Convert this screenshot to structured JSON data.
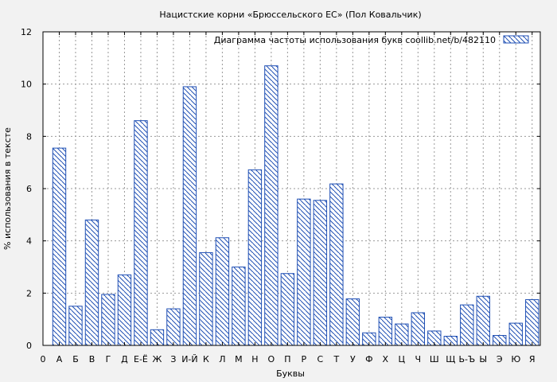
{
  "chart_data": {
    "type": "bar",
    "title": "Нацистские корни «Брюссельского ЕС» (Пол Ковальчик)",
    "xlabel": "Буквы",
    "ylabel": "% использования в тексте",
    "ylim": [
      0,
      12
    ],
    "yticks": [
      "0",
      "2",
      "4",
      "6",
      "8",
      "10",
      "12"
    ],
    "x_start_label": "0",
    "categories": [
      "А",
      "Б",
      "В",
      "Г",
      "Д",
      "Е-Ё",
      "Ж",
      "З",
      "И-Й",
      "К",
      "Л",
      "М",
      "Н",
      "О",
      "П",
      "Р",
      "С",
      "Т",
      "У",
      "Ф",
      "Х",
      "Ц",
      "Ч",
      "Ш",
      "Щ",
      "Ь-Ъ",
      "Ы",
      "Э",
      "Ю",
      "Я"
    ],
    "series": [
      {
        "name": "Диаграмма частоты использования букв  coollib.net/b/482110",
        "values": [
          7.55,
          1.5,
          4.8,
          1.95,
          2.7,
          8.6,
          0.6,
          1.4,
          9.9,
          3.55,
          4.12,
          3.0,
          6.72,
          10.7,
          2.75,
          5.6,
          5.55,
          6.18,
          1.78,
          0.48,
          1.08,
          0.82,
          1.25,
          0.55,
          0.35,
          1.55,
          1.88,
          0.38,
          0.85,
          1.75
        ]
      }
    ],
    "grid": true,
    "legend": "top-right",
    "bar_color": "#1f4fb4"
  }
}
